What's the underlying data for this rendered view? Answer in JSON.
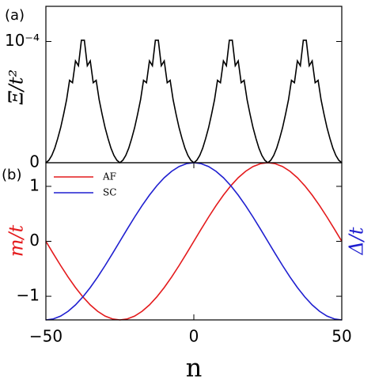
{
  "chart_data": [
    {
      "type": "line",
      "panel_label": "(a)",
      "ylabel": "Ξ/t²",
      "xlim": [
        -50,
        50
      ],
      "ylim": [
        0,
        0.000129
      ],
      "yticks": [
        0,
        {
          "value": 0.0001,
          "label": "10⁻⁴"
        }
      ],
      "x": [
        -50,
        -49,
        -48,
        -47,
        -46,
        -45,
        -44,
        -43,
        -42,
        -41,
        -40,
        -39,
        -38,
        -37,
        -36,
        -35,
        -34,
        -33,
        -32,
        -31,
        -30,
        -29,
        -28,
        -27,
        -26,
        -25,
        -24,
        -23,
        -22,
        -21,
        -20,
        -19,
        -18,
        -17,
        -16,
        -15,
        -14,
        -13,
        -12,
        -11,
        -10,
        -9,
        -8,
        -7,
        -6,
        -5,
        -4,
        -3,
        -2,
        -1,
        0,
        1,
        2,
        3,
        4,
        5,
        6,
        7,
        8,
        9,
        10,
        11,
        12,
        13,
        14,
        15,
        16,
        17,
        18,
        19,
        20,
        21,
        22,
        23,
        24,
        25,
        26,
        27,
        28,
        29,
        30,
        31,
        32,
        33,
        34,
        35,
        36,
        37,
        38,
        39,
        40,
        41,
        42,
        43,
        44,
        45,
        46,
        47,
        48,
        49,
        50
      ],
      "series": [
        {
          "name": "Ξ",
          "color": "#000000",
          "values": [
            0,
            2e-06,
            6e-06,
            1.2e-05,
            2e-05,
            2.9e-05,
            4e-05,
            5.2e-05,
            6.8e-05,
            6.6e-05,
            8.4e-05,
            8e-05,
            0.000101,
            0.000101,
            8e-05,
            8.4e-05,
            6.6e-05,
            6.8e-05,
            5.2e-05,
            4e-05,
            2.9e-05,
            2e-05,
            1.2e-05,
            6e-06,
            2e-06,
            0,
            2e-06,
            6e-06,
            1.2e-05,
            2e-05,
            2.9e-05,
            4e-05,
            5.2e-05,
            6.8e-05,
            6.6e-05,
            8.4e-05,
            8e-05,
            0.000101,
            0.000101,
            8e-05,
            8.4e-05,
            6.6e-05,
            6.8e-05,
            5.2e-05,
            4e-05,
            2.9e-05,
            2e-05,
            1.2e-05,
            6e-06,
            2e-06,
            0,
            2e-06,
            6e-06,
            1.2e-05,
            2e-05,
            2.9e-05,
            4e-05,
            5.2e-05,
            6.8e-05,
            6.6e-05,
            8.4e-05,
            8e-05,
            0.000101,
            0.000101,
            8e-05,
            8.4e-05,
            6.6e-05,
            6.8e-05,
            5.2e-05,
            4e-05,
            2.9e-05,
            2e-05,
            1.2e-05,
            6e-06,
            2e-06,
            0,
            2e-06,
            6e-06,
            1.2e-05,
            2e-05,
            2.9e-05,
            4e-05,
            5.2e-05,
            6.8e-05,
            6.6e-05,
            8.4e-05,
            8e-05,
            0.000101,
            0.000101,
            8e-05,
            8.4e-05,
            6.6e-05,
            6.8e-05,
            5.2e-05,
            4e-05,
            2.9e-05,
            2e-05,
            1.2e-05,
            6e-06,
            2e-06,
            0
          ]
        }
      ]
    },
    {
      "type": "line",
      "panel_label": "(b)",
      "xlabel": "n",
      "ylabel": "m/t",
      "y2label": "Δ/t",
      "xlim": [
        -50,
        50
      ],
      "xticks": [
        {
          "value": -50,
          "label": "−50"
        },
        0,
        50
      ],
      "ylim": [
        -1.43,
        1.43
      ],
      "yticks": [
        {
          "value": -1,
          "label": "−1"
        },
        0,
        1
      ],
      "y2lim": [
        -1,
        1
      ],
      "legend": "upper left",
      "x": [
        -50,
        -47.5,
        -45,
        -42.5,
        -40,
        -37.5,
        -35,
        -32.5,
        -30,
        -27.5,
        -25,
        -22.5,
        -20,
        -17.5,
        -15,
        -12.5,
        -10,
        -7.5,
        -5,
        -2.5,
        0,
        2.5,
        5,
        7.5,
        10,
        12.5,
        15,
        17.5,
        20,
        22.5,
        25,
        27.5,
        30,
        32.5,
        35,
        37.5,
        40,
        42.5,
        45,
        47.5,
        50
      ],
      "series": [
        {
          "name": "AF",
          "color": "#e41a1c",
          "values": [
            0,
            -0.224,
            -0.442,
            -0.649,
            -0.841,
            -1.011,
            -1.157,
            -1.274,
            -1.36,
            -1.412,
            -1.43,
            -1.412,
            -1.36,
            -1.274,
            -1.157,
            -1.011,
            -0.841,
            -0.649,
            -0.442,
            -0.224,
            0,
            0.224,
            0.442,
            0.649,
            0.841,
            1.011,
            1.157,
            1.274,
            1.36,
            1.412,
            1.43,
            1.412,
            1.36,
            1.274,
            1.157,
            1.011,
            0.841,
            0.649,
            0.442,
            0.224,
            0
          ]
        },
        {
          "name": "SC",
          "color": "#1f1fd0",
          "axis": "y2",
          "values": [
            -1,
            -0.9877,
            -0.9511,
            -0.891,
            -0.809,
            -0.7071,
            -0.5878,
            -0.454,
            -0.309,
            -0.1564,
            0,
            0.1564,
            0.309,
            0.454,
            0.5878,
            0.7071,
            0.809,
            0.891,
            0.9511,
            0.9877,
            1,
            0.9877,
            0.9511,
            0.891,
            0.809,
            0.7071,
            0.5878,
            0.454,
            0.309,
            0.1564,
            0,
            -0.1564,
            -0.309,
            -0.454,
            -0.5878,
            -0.7071,
            -0.809,
            -0.891,
            -0.9511,
            -0.9877,
            -1
          ]
        }
      ]
    }
  ]
}
